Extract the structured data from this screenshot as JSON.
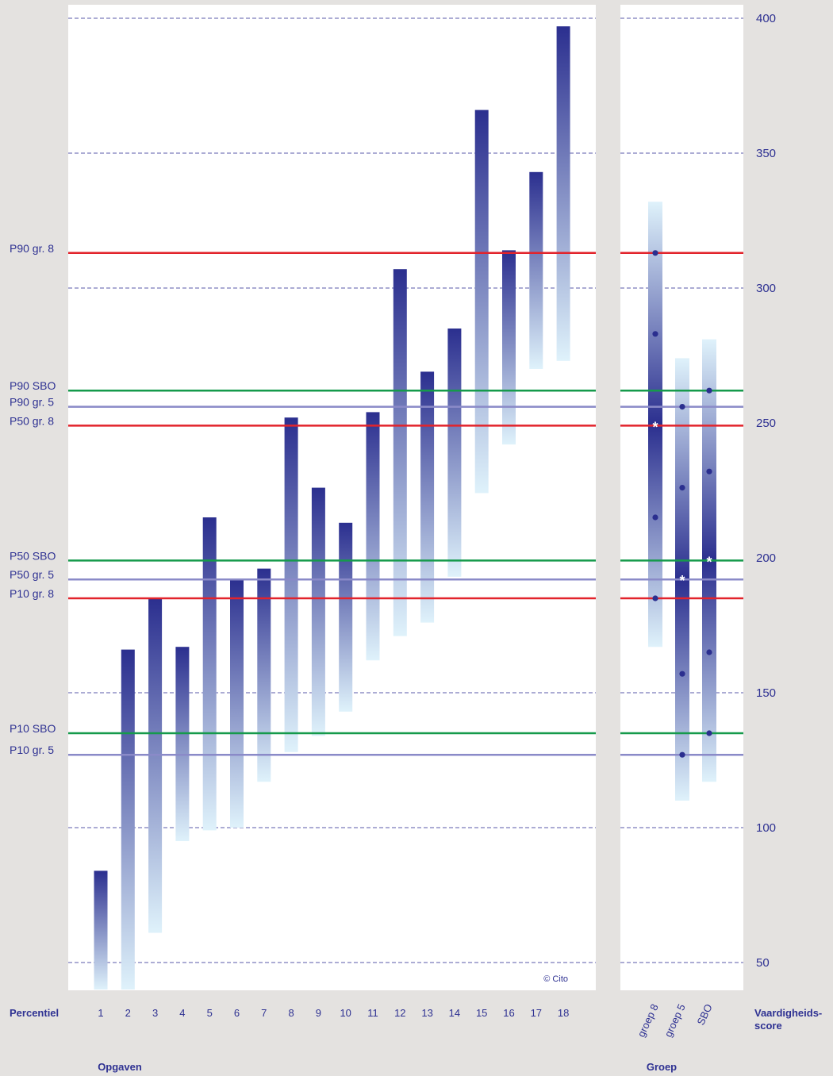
{
  "chart_data": {
    "type": "bar",
    "subtype": "floating-range",
    "y_axis_label": "Vaardigheids-score",
    "y_axis_label_lines": [
      "Vaardigheids-",
      "score"
    ],
    "ylim": [
      40,
      405
    ],
    "yticks": [
      50,
      100,
      150,
      200,
      250,
      300,
      350,
      400
    ],
    "dashed_gridlines": [
      50,
      100,
      150,
      300,
      350,
      400
    ],
    "left_axis_label": "Percentiel",
    "items_group_label": "Opgaven",
    "groups_group_label": "Groep",
    "copyright": "© Cito",
    "items": [
      {
        "label": "1",
        "low": 40,
        "high": 84
      },
      {
        "label": "2",
        "low": 40,
        "high": 166
      },
      {
        "label": "3",
        "low": 61,
        "high": 185
      },
      {
        "label": "4",
        "low": 95,
        "high": 167
      },
      {
        "label": "5",
        "low": 99,
        "high": 215
      },
      {
        "label": "6",
        "low": 100,
        "high": 192
      },
      {
        "label": "7",
        "low": 117,
        "high": 196
      },
      {
        "label": "8",
        "low": 128,
        "high": 252
      },
      {
        "label": "9",
        "low": 134,
        "high": 226
      },
      {
        "label": "10",
        "low": 143,
        "high": 213
      },
      {
        "label": "11",
        "low": 162,
        "high": 254
      },
      {
        "label": "12",
        "low": 171,
        "high": 307
      },
      {
        "label": "13",
        "low": 176,
        "high": 269
      },
      {
        "label": "14",
        "low": 193,
        "high": 285
      },
      {
        "label": "15",
        "low": 224,
        "high": 366
      },
      {
        "label": "16",
        "low": 242,
        "high": 314
      },
      {
        "label": "17",
        "low": 270,
        "high": 343
      },
      {
        "label": "18",
        "low": 273,
        "high": 397
      }
    ],
    "groups": [
      {
        "label": "groep 8",
        "low": 167,
        "high": 332,
        "P10": 185,
        "P25": 215,
        "P50": 249,
        "P75": 283,
        "P90": 313
      },
      {
        "label": "groep 5",
        "low": 110,
        "high": 274,
        "P10": 127,
        "P25": 157,
        "P50": 192,
        "P75": 226,
        "P90": 256
      },
      {
        "label": "SBO",
        "low": 117,
        "high": 281,
        "P10": 135,
        "P25": 165,
        "P50": 199,
        "P75": 232,
        "P90": 262
      }
    ],
    "reference_lines": [
      {
        "label": "P90 gr. 8",
        "value": 313,
        "color": "#e2232b"
      },
      {
        "label": "P90 SBO",
        "value": 262,
        "color": "#159a4b"
      },
      {
        "label": "P90 gr. 5",
        "value": 256,
        "color": "#8a8ac8"
      },
      {
        "label": "P50 gr. 8",
        "value": 249,
        "color": "#e2232b"
      },
      {
        "label": "P50 SBO",
        "value": 199,
        "color": "#159a4b"
      },
      {
        "label": "P50 gr. 5",
        "value": 192,
        "color": "#8a8ac8"
      },
      {
        "label": "P10 gr. 8",
        "value": 185,
        "color": "#e2232b"
      },
      {
        "label": "P10 SBO",
        "value": 135,
        "color": "#159a4b"
      },
      {
        "label": "P10 gr. 5",
        "value": 127,
        "color": "#8a8ac8"
      }
    ],
    "colors": {
      "bar_dark": "#2b2f8f",
      "bar_light": "#dff2fb",
      "text": "#2e3192",
      "background": "#e4e2e0",
      "panel": "#ffffff",
      "dashed_grid": "#5a5aa8"
    }
  }
}
